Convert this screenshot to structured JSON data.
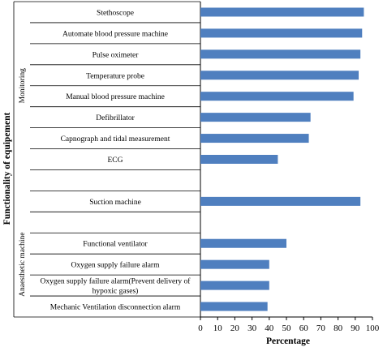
{
  "chart_data": {
    "type": "bar",
    "orientation": "horizontal",
    "xlabel": "Percentage",
    "ylabel": "Functionality of equipement",
    "xlim": [
      0,
      100
    ],
    "xticks": [
      0,
      10,
      20,
      30,
      40,
      50,
      60,
      70,
      80,
      90,
      100
    ],
    "bar_color": "#4f7fbf",
    "grid": false,
    "legend": "none",
    "rows": [
      {
        "label": "Stethoscope",
        "value": 95
      },
      {
        "label": "Automate blood pressure machine",
        "value": 94
      },
      {
        "label": "Pulse oximeter",
        "value": 93
      },
      {
        "label": "Temperature probe",
        "value": 92
      },
      {
        "label": "Manual blood pressure machine",
        "value": 89
      },
      {
        "label": "Defibrillator",
        "value": 64
      },
      {
        "label": "Capnograph and tidal measurement",
        "value": 63
      },
      {
        "label": "ECG",
        "value": 45
      },
      {
        "label": "",
        "value": null
      },
      {
        "label": "Suction machine",
        "value": 93
      },
      {
        "label": "",
        "value": null
      },
      {
        "label": "Functional ventilator",
        "value": 50
      },
      {
        "label": "Oxygen supply failure alarm",
        "value": 40
      },
      {
        "label": "Oxygen supply failure alarm(Prevent delivery of hypoxic gases)",
        "label_lines": [
          "Oxygen supply failure alarm(Prevent delivery of",
          "hypoxic gases)"
        ],
        "value": 40
      },
      {
        "label": "Mechanic Ventilation disconnection alarm",
        "value": 39
      }
    ],
    "groups": [
      {
        "label": "Monitoring",
        "from": 0,
        "to": 7
      },
      {
        "label": "Anaesthetic machine",
        "from": 10,
        "to": 14
      }
    ]
  }
}
